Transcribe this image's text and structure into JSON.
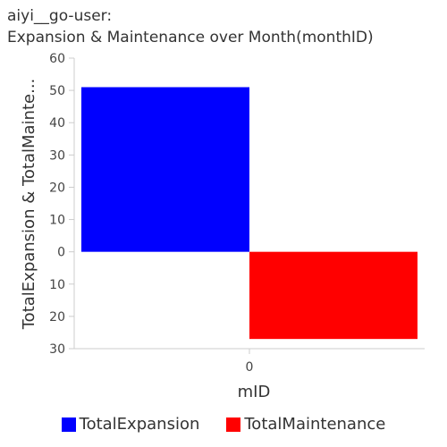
{
  "chart_data": {
    "type": "bar",
    "title_line1": "aiyi__go-user:",
    "title_line2": "Expansion & Maintenance over Month(monthID)",
    "xlabel": "mID",
    "ylabel": "TotalExpansion & TotalMainte...",
    "categories": [
      "0"
    ],
    "series": [
      {
        "name": "TotalExpansion",
        "values": [
          51
        ],
        "color": "#0000ff"
      },
      {
        "name": "TotalMaintenance",
        "values": [
          -27
        ],
        "color": "#ff0000"
      }
    ],
    "ylim": [
      -30,
      60
    ],
    "yticks": [
      60,
      50,
      40,
      30,
      20,
      10,
      0,
      -10,
      -20,
      -30
    ],
    "ytick_labels": [
      "60",
      "50",
      "40",
      "30",
      "20",
      "10",
      "0",
      "10",
      "20",
      "30"
    ],
    "grid": false,
    "legend_position": "bottom"
  }
}
